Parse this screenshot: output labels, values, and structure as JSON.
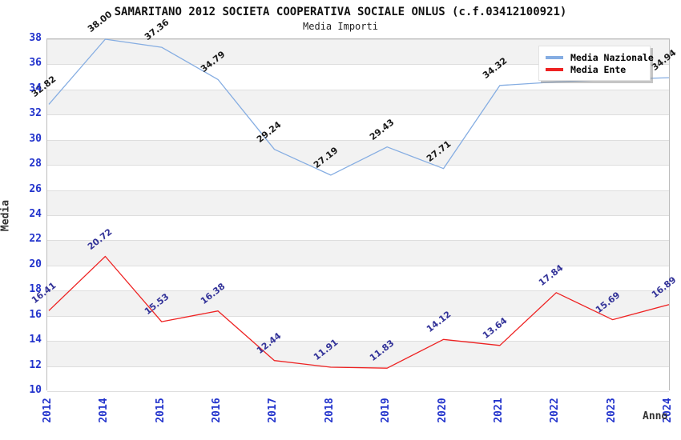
{
  "header": {
    "title": "SAMARITANO 2012 SOCIETA COOPERATIVA SOCIALE ONLUS (c.f.03412100921)",
    "subtitle": "Media Importi"
  },
  "axes": {
    "y_title": "Media",
    "x_title": "Anno",
    "y_min": 10,
    "y_max": 38,
    "y_tick_step": 2,
    "y_ticks": [
      38,
      36,
      34,
      32,
      30,
      28,
      26,
      24,
      22,
      20,
      18,
      16,
      14,
      12,
      10
    ],
    "tick_color": "#2233cc"
  },
  "legend": {
    "items": [
      {
        "label": "Media Nazionale",
        "color": "#85ade2"
      },
      {
        "label": "Media Ente",
        "color": "#ee2222"
      }
    ]
  },
  "chart_data": {
    "type": "line",
    "title": "SAMARITANO 2012 SOCIETA COOPERATIVA SOCIALE ONLUS (c.f.03412100921)",
    "subtitle": "Media Importi",
    "xlabel": "Anno",
    "ylabel": "Media",
    "ylim": [
      10,
      38
    ],
    "grid": "horizontal gridlines every 2 units with alternating gray/white bands",
    "legend_position": "top-right inset",
    "categories": [
      "2012",
      "2014",
      "2015",
      "2016",
      "2017",
      "2018",
      "2019",
      "2020",
      "2021",
      "2022",
      "2023",
      "2024"
    ],
    "series": [
      {
        "name": "Media Nazionale",
        "color": "#85ade2",
        "label_color": "#1a1a1a",
        "values": [
          32.82,
          38.0,
          37.36,
          34.79,
          29.24,
          27.19,
          29.43,
          27.71,
          34.32,
          34.6,
          34.8,
          34.94
        ],
        "point_labels": [
          "32.82",
          "38.00",
          "37.36",
          "34.79",
          "29.24",
          "27.19",
          "29.43",
          "27.71",
          "34.32",
          "",
          "",
          "34.94"
        ]
      },
      {
        "name": "Media Ente",
        "color": "#ee2222",
        "label_color": "#333399",
        "values": [
          16.41,
          20.72,
          15.53,
          16.38,
          12.44,
          11.91,
          11.83,
          14.12,
          13.64,
          17.84,
          15.69,
          16.89
        ],
        "point_labels": [
          "16.41",
          "20.72",
          "15.53",
          "16.38",
          "12.44",
          "11.91",
          "11.83",
          "14.12",
          "13.64",
          "17.84",
          "15.69",
          "16.89"
        ]
      }
    ],
    "band_colors": {
      "gray": "#f2f2f2",
      "white": "#ffffff"
    },
    "gridline_color": "#dedede"
  }
}
